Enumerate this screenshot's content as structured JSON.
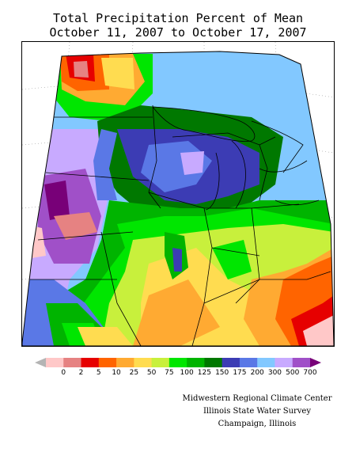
{
  "title": {
    "line1": "Total Precipitation Percent of Mean",
    "line2": "October 11, 2007 to October 17, 2007"
  },
  "legend": {
    "labels": [
      "0",
      "2",
      "5",
      "10",
      "25",
      "50",
      "75",
      "100",
      "125",
      "150",
      "175",
      "200",
      "300",
      "500",
      "700"
    ],
    "colors": [
      "#b4b4b4",
      "#ffc8c8",
      "#e68282",
      "#e60000",
      "#ff6400",
      "#ffaa32",
      "#ffdc50",
      "#c8f03c",
      "#00e600",
      "#00b400",
      "#007800",
      "#3c3cb4",
      "#5a78e6",
      "#82c8ff",
      "#c8aaff",
      "#a050c8",
      "#780078"
    ]
  },
  "credits": {
    "line1": "Midwestern Regional Climate Center",
    "line2": "Illinois State Water Survey",
    "line3": "Champaign, Illinois"
  }
}
